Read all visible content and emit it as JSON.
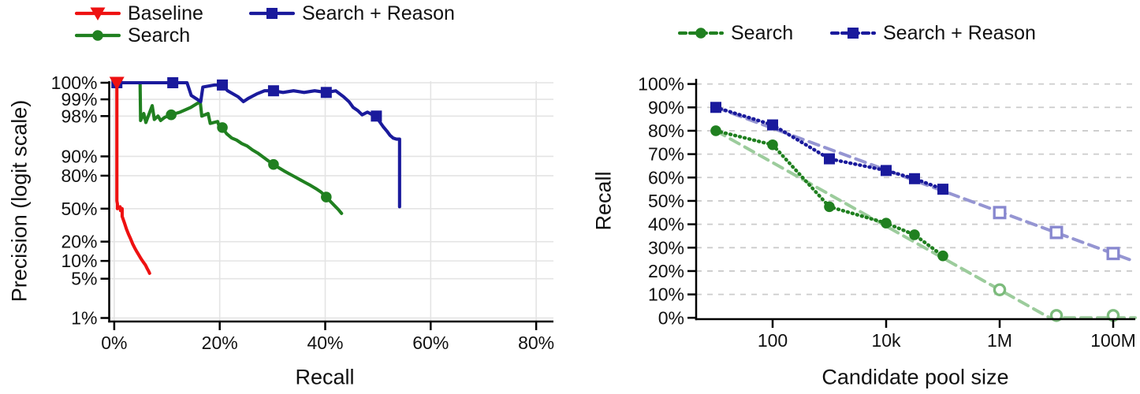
{
  "chart_data": [
    {
      "id": "precision-recall",
      "type": "line",
      "xlabel": "Recall",
      "ylabel": "Precision (logit scale)",
      "x_scale": "linear-percent",
      "y_scale": "logit-percent",
      "xlim": [
        0,
        83
      ],
      "x_ticks": [
        {
          "v": 0,
          "label": "0%"
        },
        {
          "v": 20,
          "label": "20%"
        },
        {
          "v": 40,
          "label": "40%"
        },
        {
          "v": 60,
          "label": "60%"
        },
        {
          "v": 80,
          "label": "80%"
        }
      ],
      "y_ticks": [
        {
          "v": 99.5,
          "label": "100%"
        },
        {
          "v": 99,
          "label": "99%"
        },
        {
          "v": 98,
          "label": "98%"
        },
        {
          "v": 90,
          "label": "90%"
        },
        {
          "v": 80,
          "label": "80%"
        },
        {
          "v": 50,
          "label": "50%"
        },
        {
          "v": 20,
          "label": "20%"
        },
        {
          "v": 10,
          "label": "10%"
        },
        {
          "v": 5,
          "label": "5%"
        },
        {
          "v": 1,
          "label": "1%"
        }
      ],
      "legend": [
        {
          "label": "Baseline",
          "color": "#ee1111",
          "marker": "triangle-down",
          "line": "solid"
        },
        {
          "label": "Search + Reason",
          "color": "#1a1a9c",
          "marker": "square",
          "line": "solid"
        },
        {
          "label": "Search",
          "color": "#208020",
          "marker": "circle",
          "line": "solid"
        }
      ],
      "series": [
        {
          "name": "Search",
          "color": "#208020",
          "marker": "circle",
          "line": "solid",
          "marker_points": [
            [
              0.5,
              99.5
            ],
            [
              10.8,
              98.1
            ],
            [
              20.5,
              96.8
            ],
            [
              30.2,
              86.5
            ],
            [
              40.2,
              62.0
            ]
          ],
          "points": [
            [
              0.5,
              99.5
            ],
            [
              4.9,
              99.5
            ],
            [
              5.0,
              97.6
            ],
            [
              5.6,
              98.2
            ],
            [
              6.0,
              97.4
            ],
            [
              7.2,
              98.7
            ],
            [
              7.6,
              97.7
            ],
            [
              8.3,
              98.0
            ],
            [
              8.8,
              97.6
            ],
            [
              9.6,
              97.9
            ],
            [
              10.8,
              98.1
            ],
            [
              12.5,
              98.3
            ],
            [
              14.5,
              98.6
            ],
            [
              16.3,
              98.9
            ],
            [
              16.6,
              98.0
            ],
            [
              17.8,
              98.2
            ],
            [
              18.2,
              97.3
            ],
            [
              19.6,
              97.5
            ],
            [
              20.0,
              96.7
            ],
            [
              20.5,
              96.8
            ],
            [
              21.3,
              95.9
            ],
            [
              22.3,
              95.1
            ],
            [
              23.2,
              94.7
            ],
            [
              24.2,
              93.9
            ],
            [
              25.2,
              93.3
            ],
            [
              26.2,
              92.2
            ],
            [
              27.2,
              91.2
            ],
            [
              28.2,
              89.8
            ],
            [
              29.2,
              88.2
            ],
            [
              30.2,
              86.5
            ],
            [
              31.2,
              84.8
            ],
            [
              32.2,
              83.0
            ],
            [
              33.2,
              81.2
            ],
            [
              34.2,
              79.3
            ],
            [
              35.2,
              77.2
            ],
            [
              36.2,
              75.0
            ],
            [
              37.2,
              72.7
            ],
            [
              38.2,
              70.0
            ],
            [
              39.2,
              66.8
            ],
            [
              40.2,
              62.0
            ],
            [
              41.0,
              57.5
            ],
            [
              41.8,
              53.0
            ],
            [
              42.5,
              49.0
            ],
            [
              43.1,
              45.0
            ]
          ]
        },
        {
          "name": "Search + Reason",
          "color": "#1a1a9c",
          "marker": "square",
          "line": "solid",
          "marker_points": [
            [
              0.5,
              99.5
            ],
            [
              11.1,
              99.5
            ],
            [
              20.5,
              99.45
            ],
            [
              30.2,
              99.3
            ],
            [
              40.2,
              99.25
            ],
            [
              49.7,
              98.0
            ]
          ],
          "points": [
            [
              0.5,
              99.5
            ],
            [
              13.8,
              99.5
            ],
            [
              14.6,
              99.15
            ],
            [
              16.4,
              98.9
            ],
            [
              16.8,
              99.4
            ],
            [
              19.0,
              99.45
            ],
            [
              20.5,
              99.45
            ],
            [
              21.5,
              99.3
            ],
            [
              23.5,
              99.1
            ],
            [
              24.5,
              98.9
            ],
            [
              25.5,
              99.05
            ],
            [
              27.0,
              99.2
            ],
            [
              28.5,
              99.3
            ],
            [
              30.2,
              99.3
            ],
            [
              32.0,
              99.25
            ],
            [
              34.0,
              99.3
            ],
            [
              36.0,
              99.25
            ],
            [
              38.0,
              99.3
            ],
            [
              40.2,
              99.25
            ],
            [
              42.0,
              99.3
            ],
            [
              43.5,
              99.1
            ],
            [
              44.5,
              98.9
            ],
            [
              45.3,
              98.6
            ],
            [
              46.2,
              98.4
            ],
            [
              47.0,
              98.1
            ],
            [
              48.0,
              98.3
            ],
            [
              49.0,
              98.1
            ],
            [
              49.7,
              98.0
            ],
            [
              50.3,
              97.5
            ],
            [
              51.0,
              96.9
            ],
            [
              51.7,
              96.3
            ],
            [
              52.3,
              95.6
            ],
            [
              52.9,
              95.1
            ],
            [
              53.5,
              94.9
            ],
            [
              54.1,
              94.9
            ],
            [
              54.1,
              52.0
            ]
          ]
        },
        {
          "name": "Baseline",
          "color": "#ee1111",
          "marker": "triangle-down",
          "line": "solid",
          "marker_points": [
            [
              0.5,
              99.5
            ]
          ],
          "points": [
            [
              0.5,
              99.5
            ],
            [
              0.5,
              58
            ],
            [
              0.6,
              55
            ],
            [
              0.6,
              50
            ],
            [
              1.1,
              52
            ],
            [
              1.2,
              48
            ],
            [
              1.5,
              50
            ],
            [
              1.5,
              42
            ],
            [
              1.9,
              36
            ],
            [
              2.3,
              30
            ],
            [
              2.7,
              25.5
            ],
            [
              3.1,
              22
            ],
            [
              3.5,
              18.5
            ],
            [
              3.9,
              16
            ],
            [
              4.3,
              14
            ],
            [
              4.7,
              12.3
            ],
            [
              5.1,
              10.8
            ],
            [
              5.5,
              9.6
            ],
            [
              5.9,
              8.6
            ],
            [
              6.2,
              7.6
            ],
            [
              6.5,
              6.8
            ],
            [
              6.7,
              6.2
            ]
          ]
        }
      ]
    },
    {
      "id": "recall-vs-pool-size",
      "type": "line",
      "xlabel": "Candidate pool size",
      "ylabel": "Recall",
      "x_scale": "log",
      "y_scale": "linear-percent",
      "ylim": [
        0,
        100
      ],
      "x_ticks": [
        {
          "v": 100,
          "label": "100"
        },
        {
          "v": 10000,
          "label": "10k"
        },
        {
          "v": 1000000,
          "label": "1M"
        },
        {
          "v": 100000000,
          "label": "100M"
        }
      ],
      "y_ticks": [
        {
          "v": 100,
          "label": "100%"
        },
        {
          "v": 90,
          "label": "90%"
        },
        {
          "v": 80,
          "label": "80%"
        },
        {
          "v": 70,
          "label": "70%"
        },
        {
          "v": 60,
          "label": "60%"
        },
        {
          "v": 50,
          "label": "50%"
        },
        {
          "v": 40,
          "label": "40%"
        },
        {
          "v": 30,
          "label": "30%"
        },
        {
          "v": 20,
          "label": "20%"
        },
        {
          "v": 10,
          "label": "10%"
        },
        {
          "v": 0,
          "label": "0%"
        }
      ],
      "legend": [
        {
          "label": "Search",
          "color": "#208020",
          "marker": "circle",
          "line": "dashed"
        },
        {
          "label": "Search + Reason",
          "color": "#1a1a9c",
          "marker": "square",
          "line": "dashed"
        }
      ],
      "series": [
        {
          "name": "Search trend",
          "role": "fit",
          "color": "#9ccc9c",
          "line": "dashed",
          "points": [
            [
              10,
              80
            ],
            [
              7600000,
              0
            ],
            [
              260000000,
              0
            ]
          ]
        },
        {
          "name": "Search + Reason trend",
          "role": "fit",
          "color": "#9595d2",
          "line": "dashed",
          "points": [
            [
              10,
              90
            ],
            [
              260000000,
              24
            ]
          ]
        },
        {
          "name": "Search",
          "color": "#208020",
          "marker": "circle",
          "line": "dotted",
          "points": [
            [
              10,
              80
            ],
            [
              100,
              74
            ],
            [
              1000,
              47.5
            ],
            [
              10000,
              40.5
            ],
            [
              31600,
              35.5
            ],
            [
              100000,
              26.5
            ]
          ]
        },
        {
          "name": "Search + Reason",
          "color": "#1a1a9c",
          "marker": "square",
          "line": "dotted",
          "points": [
            [
              10,
              90
            ],
            [
              100,
              82.5
            ],
            [
              1000,
              68
            ],
            [
              10000,
              63
            ],
            [
              31600,
              59.5
            ],
            [
              100000,
              55
            ]
          ]
        },
        {
          "name": "Search extrapolated",
          "role": "open",
          "color": "#7cbb7c",
          "marker": "circle-open",
          "points": [
            [
              1000000,
              12
            ],
            [
              10000000,
              1
            ],
            [
              100000000,
              1
            ]
          ]
        },
        {
          "name": "Search + Reason extrapolated",
          "role": "open",
          "color": "#8787cf",
          "marker": "square-open",
          "points": [
            [
              1000000,
              45
            ],
            [
              10000000,
              36.5
            ],
            [
              100000000,
              27.5
            ]
          ]
        }
      ]
    }
  ],
  "labels": {
    "left_ylabel": "Precision (logit scale)",
    "left_xlabel": "Recall",
    "right_ylabel": "Recall",
    "right_xlabel": "Candidate pool size"
  }
}
